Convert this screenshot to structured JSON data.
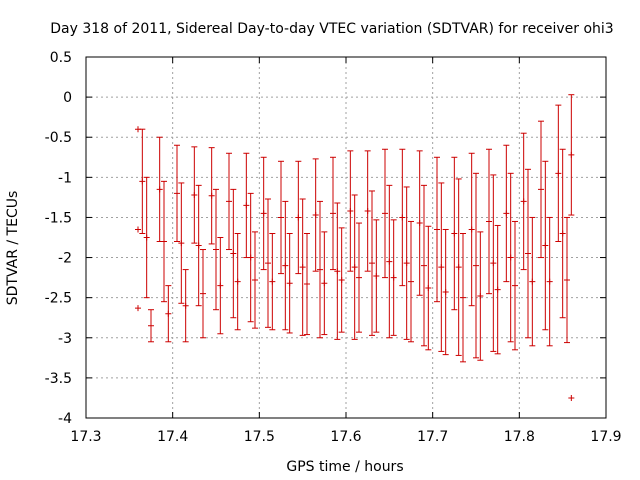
{
  "chart_data": {
    "type": "scatter",
    "title": "Day 318 of 2011, Sidereal Day-to-day VTEC variation (SDTVAR) for receiver ohi3",
    "xlabel": "GPS time / hours",
    "ylabel": "SDTVAR / TECUs",
    "xlim": [
      17.3,
      17.9
    ],
    "ylim": [
      -4,
      0.5
    ],
    "xticks": [
      "17.3",
      "17.4",
      "17.5",
      "17.6",
      "17.7",
      "17.8",
      "17.9"
    ],
    "yticks": [
      "-4",
      "-3.5",
      "-3",
      "-2.5",
      "-2",
      "-1.5",
      "-1",
      "-0.5",
      "0",
      "0.5"
    ],
    "grid": true,
    "color": "#cc0000",
    "series": [
      {
        "style": "errorbars",
        "x": [
          17.365,
          17.385,
          17.405,
          17.425,
          17.445,
          17.465,
          17.485,
          17.505,
          17.525,
          17.545,
          17.565,
          17.585,
          17.605,
          17.625,
          17.645,
          17.665,
          17.685,
          17.705,
          17.725,
          17.745,
          17.765,
          17.785,
          17.805,
          17.825,
          17.845,
          17.86
        ],
        "y": [
          -1.05,
          -1.15,
          -1.2,
          -1.22,
          -1.23,
          -1.3,
          -1.35,
          -1.45,
          -1.5,
          -1.5,
          -1.47,
          -1.45,
          -1.42,
          -1.42,
          -1.45,
          -1.5,
          -1.57,
          -1.65,
          -1.7,
          -1.65,
          -1.55,
          -1.45,
          -1.3,
          -1.15,
          -0.95,
          -0.72
        ],
        "yerr": [
          0.65,
          0.65,
          0.6,
          0.6,
          0.6,
          0.6,
          0.65,
          0.7,
          0.7,
          0.7,
          0.7,
          0.7,
          0.75,
          0.75,
          0.8,
          0.85,
          0.9,
          0.9,
          0.95,
          0.95,
          0.9,
          0.85,
          0.85,
          0.85,
          0.85,
          0.75
        ]
      },
      {
        "style": "errorbars",
        "x": [
          17.37,
          17.39,
          17.41,
          17.43,
          17.45,
          17.47,
          17.49,
          17.51,
          17.53,
          17.55,
          17.57,
          17.59,
          17.61,
          17.63,
          17.65,
          17.67,
          17.69,
          17.71,
          17.73,
          17.75,
          17.77,
          17.79,
          17.81,
          17.83,
          17.85
        ],
        "y": [
          -1.75,
          -1.8,
          -1.82,
          -1.85,
          -1.9,
          -1.95,
          -2.0,
          -2.07,
          -2.1,
          -2.12,
          -2.15,
          -2.17,
          -2.12,
          -2.07,
          -2.05,
          -2.07,
          -2.1,
          -2.12,
          -2.12,
          -2.1,
          -2.07,
          -2.0,
          -1.95,
          -1.85,
          -1.7
        ],
        "yerr": [
          0.75,
          0.75,
          0.75,
          0.75,
          0.75,
          0.8,
          0.8,
          0.8,
          0.8,
          0.85,
          0.85,
          0.85,
          0.9,
          0.9,
          0.95,
          0.95,
          1.0,
          1.05,
          1.1,
          1.15,
          1.1,
          1.05,
          1.05,
          1.05,
          1.05
        ]
      },
      {
        "style": "errorbars",
        "x": [
          17.375,
          17.395,
          17.415,
          17.435,
          17.455,
          17.475,
          17.495,
          17.515,
          17.535,
          17.555,
          17.575,
          17.595,
          17.615,
          17.635,
          17.655,
          17.675,
          17.695,
          17.715,
          17.735,
          17.755,
          17.775,
          17.795,
          17.815,
          17.835,
          17.855
        ],
        "y": [
          -2.85,
          -2.7,
          -2.6,
          -2.45,
          -2.35,
          -2.3,
          -2.28,
          -2.3,
          -2.32,
          -2.33,
          -2.32,
          -2.28,
          -2.25,
          -2.23,
          -2.25,
          -2.3,
          -2.38,
          -2.43,
          -2.5,
          -2.48,
          -2.4,
          -2.35,
          -2.3,
          -2.3,
          -2.28
        ],
        "yerr": [
          0.2,
          0.35,
          0.45,
          0.55,
          0.6,
          0.6,
          0.6,
          0.6,
          0.62,
          0.63,
          0.64,
          0.65,
          0.68,
          0.7,
          0.72,
          0.75,
          0.77,
          0.78,
          0.8,
          0.8,
          0.8,
          0.8,
          0.8,
          0.8,
          0.78
        ]
      },
      {
        "style": "points",
        "x": [
          17.36,
          17.36,
          17.36,
          17.86
        ],
        "y": [
          -0.4,
          -1.65,
          -2.63,
          -3.75
        ]
      }
    ]
  }
}
